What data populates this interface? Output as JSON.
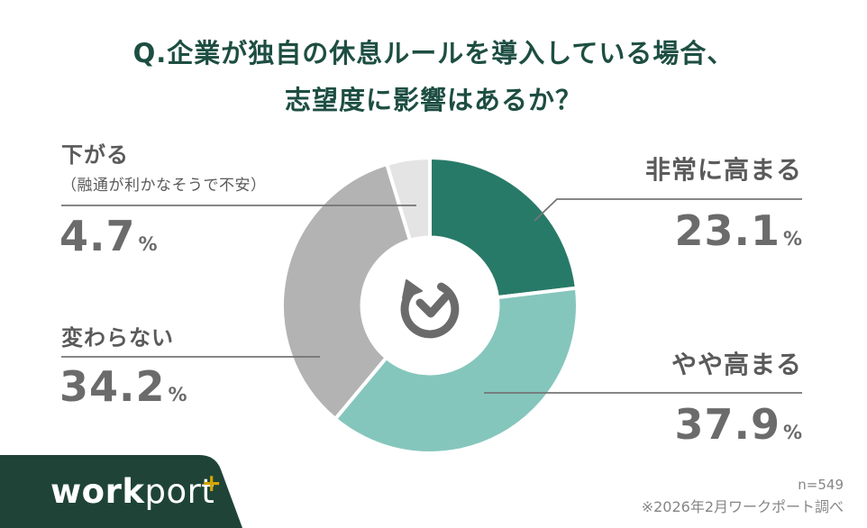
{
  "title": {
    "line1": "Q.企業が独自の休息ルールを導入している場合、",
    "line2": "志望度に影響はあるか？"
  },
  "chart_data": {
    "type": "pie",
    "subtype": "donut",
    "title": "企業が独自の休息ルールを導入している場合、志望度に影響はあるか？",
    "unit": "%",
    "start_angle_deg": 0,
    "direction": "clockwise",
    "inner_radius_ratio": 0.46,
    "center_icon": "clock-refresh-icon",
    "legend_position": "callouts",
    "segments": [
      {
        "label": "非常に高まる",
        "value": 23.1,
        "value_text": "23.1",
        "color": "#287a68"
      },
      {
        "label": "やや高まる",
        "value": 37.9,
        "value_text": "37.9",
        "color": "#85c6bc"
      },
      {
        "label": "変わらない",
        "value": 34.2,
        "value_text": "34.2",
        "color": "#b3b3b3"
      },
      {
        "label": "下がる",
        "note": "（融通が利かなそうで不安）",
        "value": 4.7,
        "value_text": "4.7",
        "color": "#e4e4e4"
      }
    ]
  },
  "footer": {
    "sample_size": "n=549",
    "source": "※2026年2月ワークポート調べ"
  },
  "logo": {
    "text_bold": "work",
    "text_light": "port",
    "plus": "+"
  },
  "colors": {
    "title_green": "#1d4e41",
    "logo_panel_green": "#1f4437",
    "logo_plus_gold": "#d6a500",
    "label_gray": "#5a5a5a",
    "value_gray": "#6b6b6b",
    "leader_line_gray": "#757575"
  }
}
